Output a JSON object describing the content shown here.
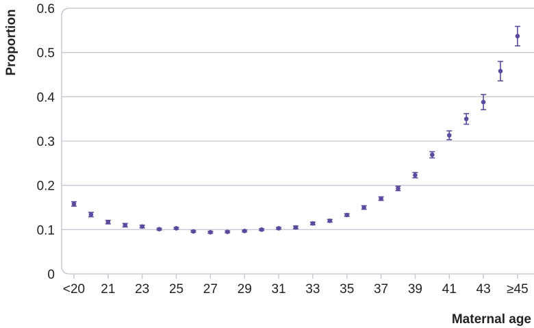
{
  "chart_data": {
    "type": "scatter",
    "title": "",
    "xlabel": "Maternal age",
    "ylabel": "Proportion",
    "ylim": [
      0,
      0.6
    ],
    "yticks": [
      0,
      0.1,
      0.2,
      0.3,
      0.4,
      0.5,
      0.6
    ],
    "ytick_labels": [
      "0",
      "0.1",
      "0.2",
      "0.3",
      "0.4",
      "0.5",
      "0.6"
    ],
    "x_categories": [
      "<20",
      "20",
      "21",
      "22",
      "23",
      "24",
      "25",
      "26",
      "27",
      "28",
      "29",
      "30",
      "31",
      "32",
      "33",
      "34",
      "35",
      "36",
      "37",
      "38",
      "39",
      "40",
      "41",
      "42",
      "43",
      "44",
      "≥45"
    ],
    "x_tick_labels": [
      "<20",
      "21",
      "23",
      "25",
      "27",
      "29",
      "31",
      "33",
      "35",
      "37",
      "39",
      "41",
      "43",
      "≥45"
    ],
    "x_ticks_at": [
      "<20",
      "21",
      "23",
      "25",
      "27",
      "29",
      "31",
      "33",
      "35",
      "37",
      "39",
      "41",
      "43",
      "≥45"
    ],
    "grid": true,
    "error_bars": true,
    "series": [
      {
        "values": [
          0.158,
          0.134,
          0.117,
          0.11,
          0.107,
          0.101,
          0.103,
          0.096,
          0.094,
          0.095,
          0.097,
          0.1,
          0.103,
          0.105,
          0.114,
          0.12,
          0.133,
          0.15,
          0.17,
          0.193,
          0.223,
          0.269,
          0.313,
          0.35,
          0.388,
          0.458,
          0.537
        ],
        "lower": [
          0.153,
          0.129,
          0.113,
          0.106,
          0.104,
          0.099,
          0.101,
          0.094,
          0.092,
          0.093,
          0.095,
          0.098,
          0.101,
          0.102,
          0.111,
          0.117,
          0.13,
          0.146,
          0.166,
          0.188,
          0.217,
          0.262,
          0.303,
          0.338,
          0.371,
          0.436,
          0.515
        ],
        "upper": [
          0.163,
          0.139,
          0.121,
          0.114,
          0.11,
          0.103,
          0.105,
          0.098,
          0.096,
          0.097,
          0.099,
          0.102,
          0.105,
          0.108,
          0.117,
          0.123,
          0.136,
          0.154,
          0.174,
          0.198,
          0.229,
          0.276,
          0.323,
          0.362,
          0.405,
          0.48,
          0.559
        ]
      }
    ],
    "colors": {
      "marker": "#5c4a9e",
      "grid": "#c8c8d4",
      "axis": "#c8c8d4",
      "text": "#222222"
    }
  }
}
